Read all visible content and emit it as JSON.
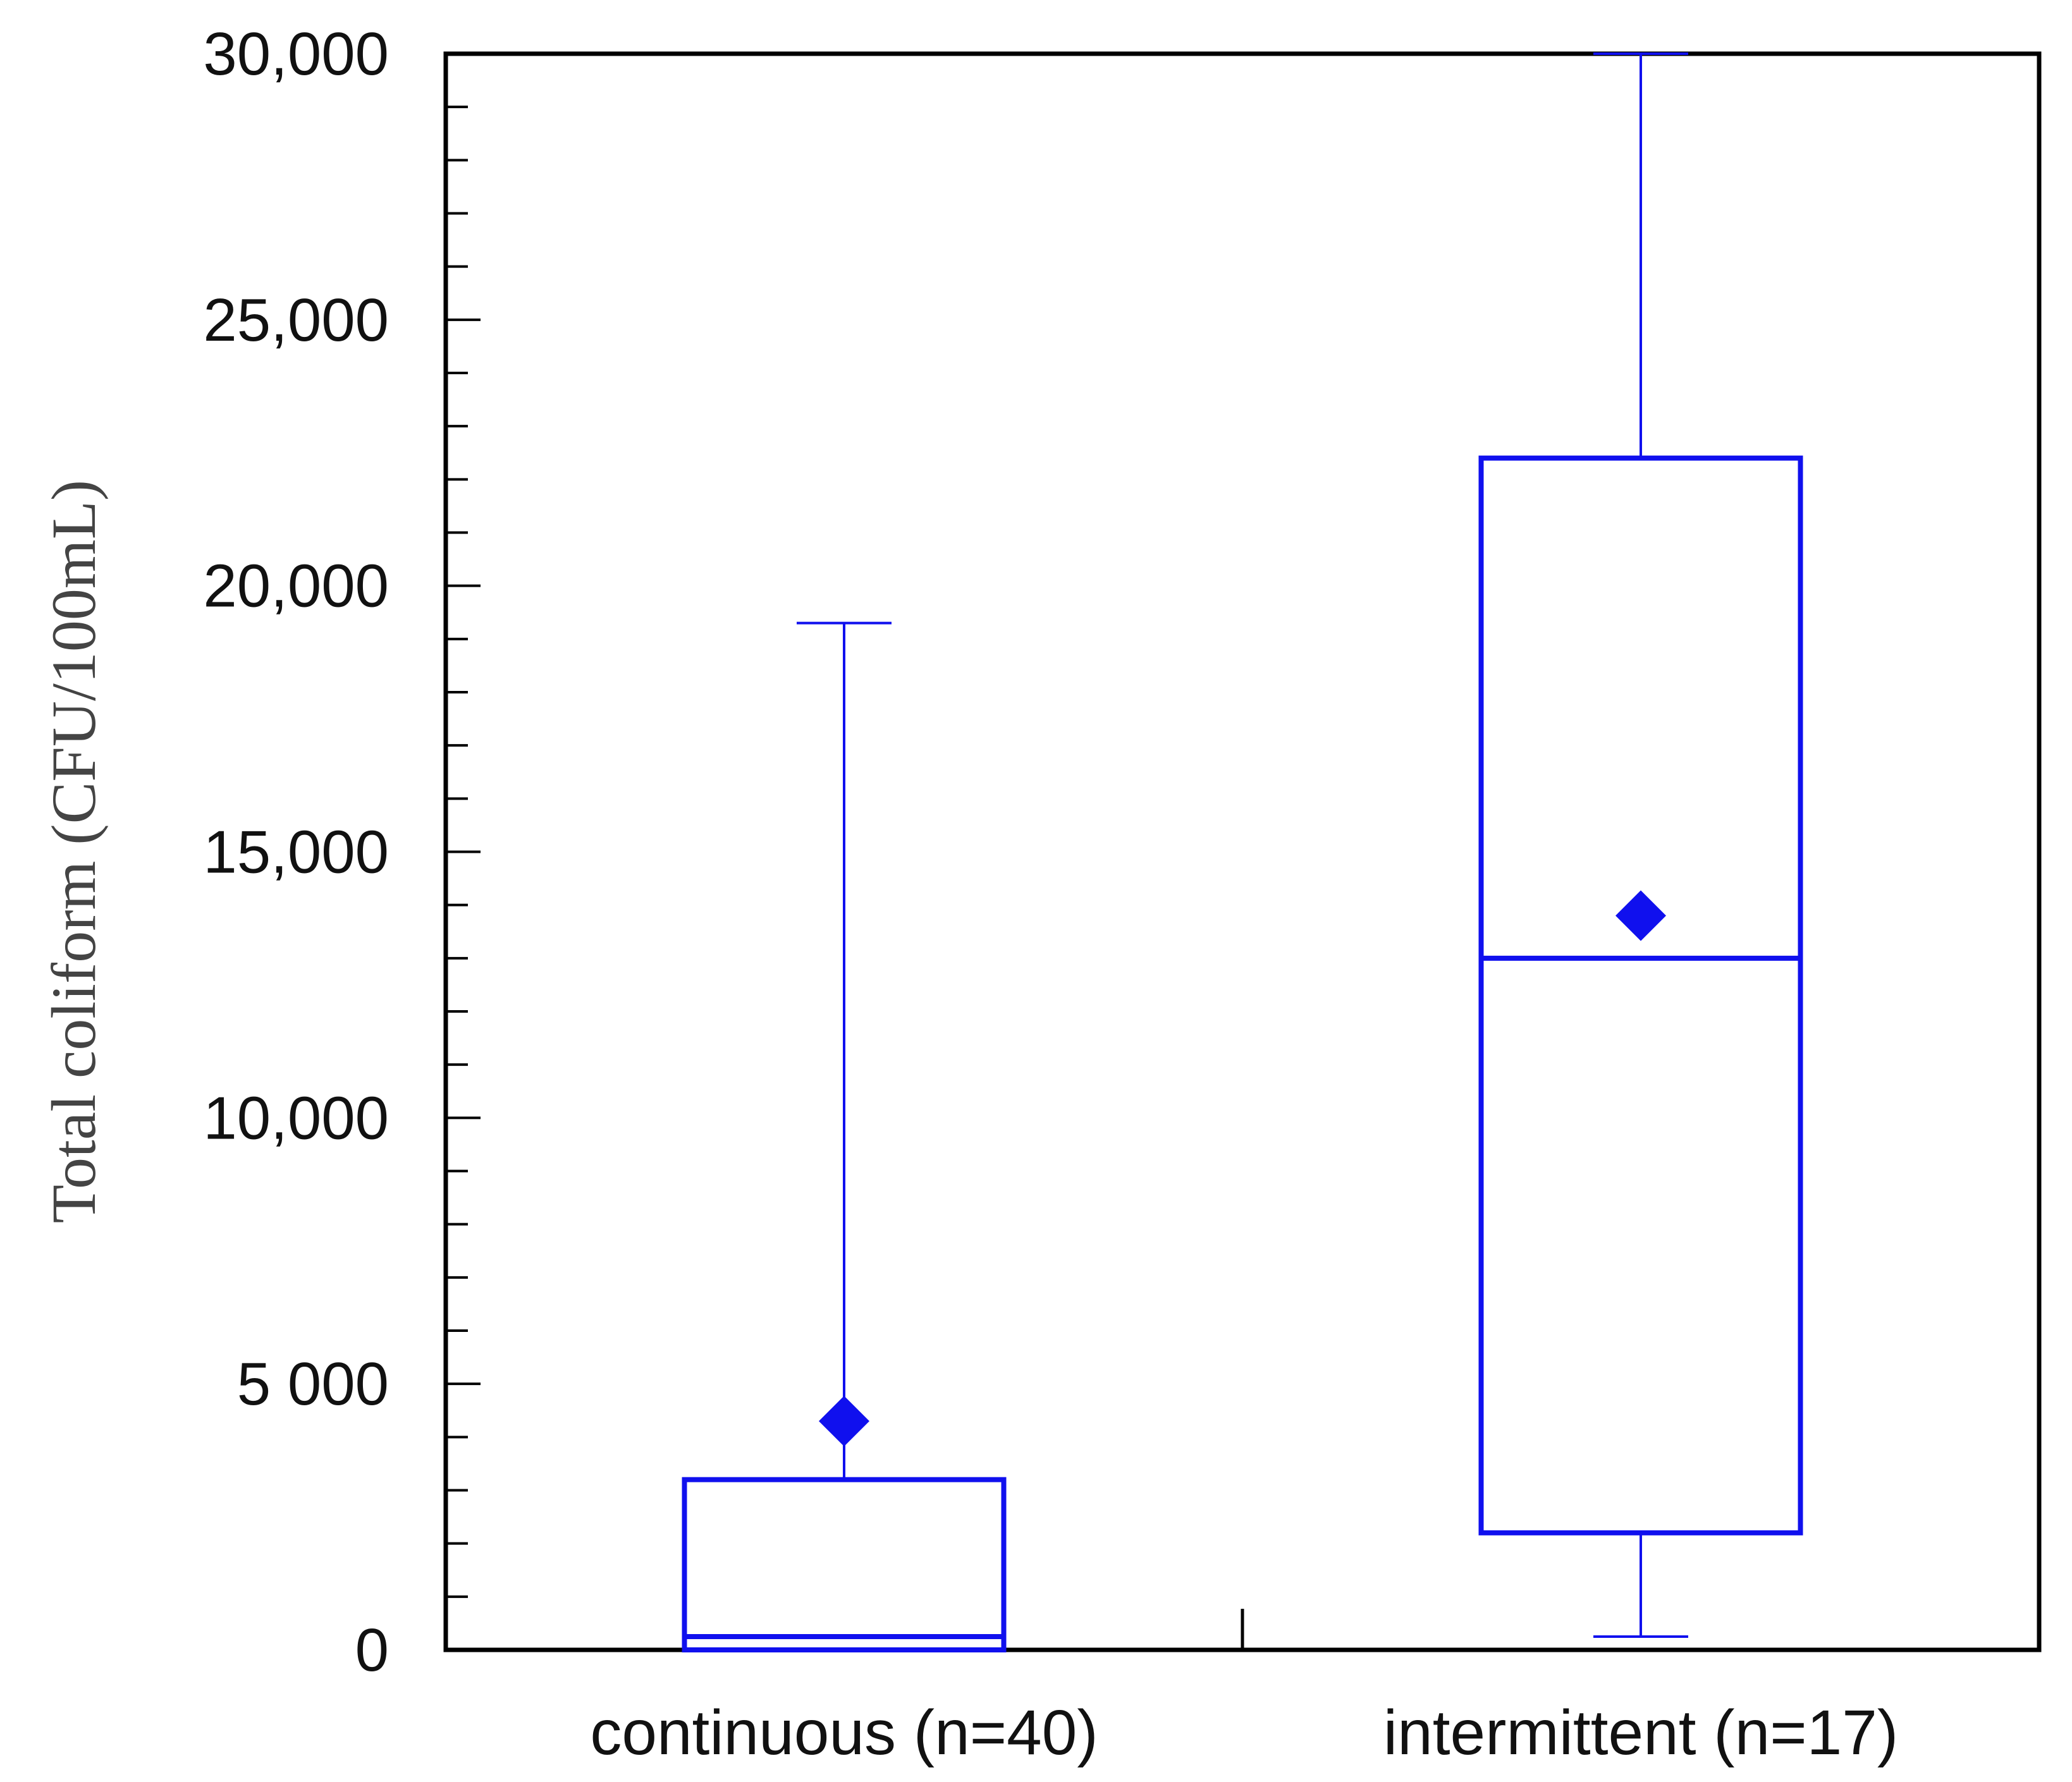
{
  "chart_data": {
    "type": "box",
    "title": "",
    "xlabel": "",
    "ylabel": "Total coliform (CFU/100mL)",
    "ylim": [
      0,
      30000
    ],
    "yticks": [
      0,
      5000,
      10000,
      15000,
      20000,
      25000,
      30000
    ],
    "ytick_labels": [
      "0",
      "5 000",
      "10,000",
      "15,000",
      "20,000",
      "25,000",
      "30,000"
    ],
    "minor_tick_step": 1000,
    "grid": false,
    "legend": "none",
    "categories": [
      "continuous (n=40)",
      "intermittent (n=17)"
    ],
    "boxes": [
      {
        "category": "continuous (n=40)",
        "whisker_low": 0,
        "q1": 0,
        "median": 250,
        "q3": 3200,
        "whisker_high": 19300,
        "mean": 4300
      },
      {
        "category": "intermittent (n=17)",
        "whisker_low": 250,
        "q1": 2200,
        "median": 13000,
        "q3": 22400,
        "whisker_high": 30000,
        "mean": 13800
      }
    ],
    "colors": {
      "box": "#1010ee",
      "axis": "#000000"
    }
  }
}
